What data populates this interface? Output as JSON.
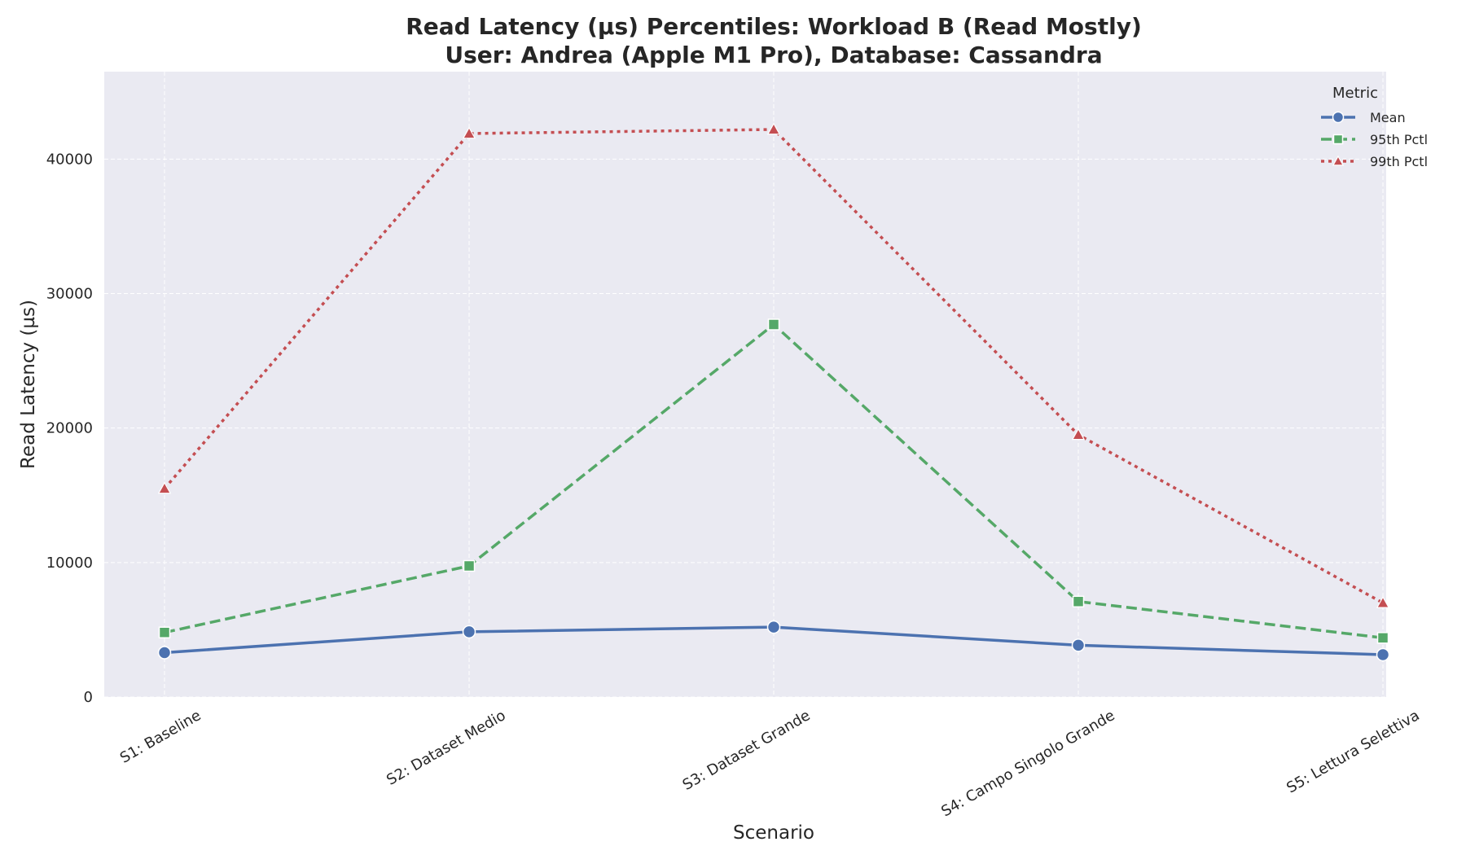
{
  "chart_data": {
    "type": "line",
    "title_line1": "Read Latency (µs) Percentiles: Workload B (Read Mostly)",
    "title_line2": "User: Andrea (Apple M1 Pro), Database: Cassandra",
    "xlabel": "Scenario",
    "ylabel": "Read Latency (µs)",
    "categories": [
      "S1: Baseline",
      "S2: Dataset Medio",
      "S3: Dataset Grande",
      "S4: Campo Singolo Grande",
      "S5: Lettura Selettiva"
    ],
    "yticks": [
      0,
      10000,
      20000,
      30000,
      40000
    ],
    "ylim": [
      0,
      46500
    ],
    "grid": true,
    "legend": {
      "title": "Metric",
      "placement": "top-right"
    },
    "series": [
      {
        "name": "Mean",
        "values": [
          3300,
          4850,
          5200,
          3850,
          3150
        ],
        "color": "#4c72b0",
        "marker": "circle",
        "dash": "solid"
      },
      {
        "name": "95th Pctl",
        "values": [
          4800,
          9750,
          27700,
          7100,
          4400
        ],
        "color": "#55a868",
        "marker": "square",
        "dash": "dashed"
      },
      {
        "name": "99th Pctl",
        "values": [
          15500,
          41900,
          42200,
          19500,
          7000
        ],
        "color": "#c44e52",
        "marker": "triangle",
        "dash": "dotted"
      }
    ]
  }
}
